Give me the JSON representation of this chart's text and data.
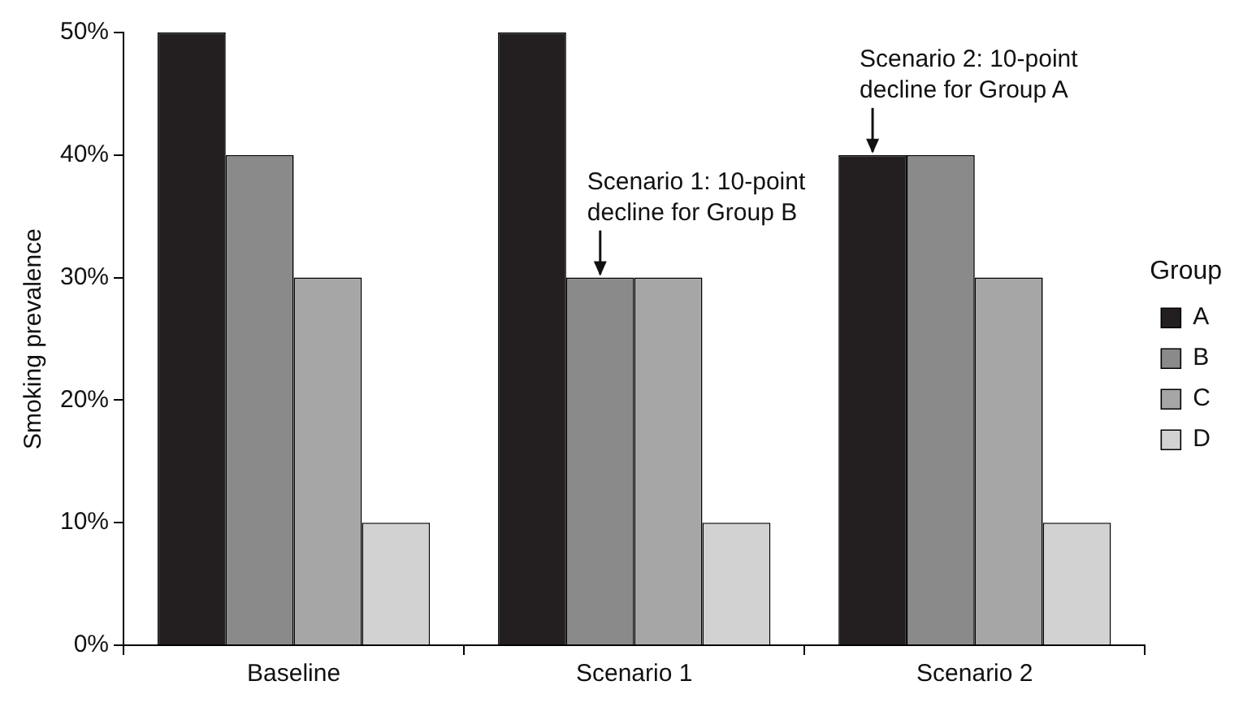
{
  "chart_data": {
    "type": "bar",
    "ylabel": "Smoking prevalence",
    "legend_title": "Group",
    "categories": [
      "Baseline",
      "Scenario 1",
      "Scenario 2"
    ],
    "series": [
      {
        "name": "A",
        "color": "#231f20",
        "values": [
          50,
          50,
          40
        ]
      },
      {
        "name": "B",
        "color": "#8a8a8a",
        "values": [
          40,
          30,
          40
        ]
      },
      {
        "name": "C",
        "color": "#a6a6a6",
        "values": [
          30,
          30,
          30
        ]
      },
      {
        "name": "D",
        "color": "#d2d2d2",
        "values": [
          10,
          10,
          10
        ]
      }
    ],
    "ylim": [
      0,
      50
    ],
    "yticks": [
      {
        "value": 0,
        "label": "0%"
      },
      {
        "value": 10,
        "label": "10%"
      },
      {
        "value": 20,
        "label": "20%"
      },
      {
        "value": 30,
        "label": "30%"
      },
      {
        "value": 40,
        "label": "40%"
      },
      {
        "value": 50,
        "label": "50%"
      }
    ],
    "grid": false,
    "legend": "right",
    "annotations": [
      {
        "text": "Scenario 1: 10-point decline for Group B",
        "x": "Scenario 1",
        "y": 30
      },
      {
        "text": "Scenario 2: 10-point decline for Group A",
        "x": "Scenario 2",
        "y": 40
      }
    ]
  }
}
